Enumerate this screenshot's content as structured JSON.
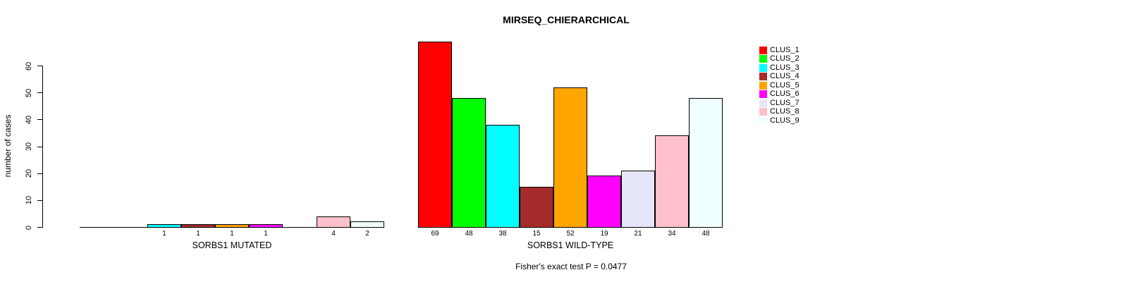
{
  "chart_data": {
    "type": "bar",
    "title": "MIRSEQ_CHIERARCHICAL",
    "ylabel": "number of cases",
    "xlabel": "",
    "ylim": [
      0,
      60
    ],
    "yticks": [
      0,
      10,
      20,
      30,
      40,
      50,
      60
    ],
    "grid": false,
    "legend_position": "right",
    "annotation": "Fisher's exact test P = 0.0477",
    "clusters": [
      "CLUS_1",
      "CLUS_2",
      "CLUS_3",
      "CLUS_4",
      "CLUS_5",
      "CLUS_6",
      "CLUS_7",
      "CLUS_8",
      "CLUS_9"
    ],
    "colors": [
      "#FF0000",
      "#00FF00",
      "#00FFFF",
      "#A52A2A",
      "#FFA500",
      "#FF00FF",
      "#E6E6FA",
      "#FFC0CB",
      "#F0FFFF"
    ],
    "groups": [
      {
        "label": "SORBS1 MUTATED",
        "values": [
          0,
          0,
          1,
          1,
          1,
          1,
          0,
          4,
          2
        ]
      },
      {
        "label": "SORBS1 WILD-TYPE",
        "values": [
          69,
          48,
          38,
          15,
          52,
          19,
          21,
          34,
          48
        ]
      }
    ]
  }
}
